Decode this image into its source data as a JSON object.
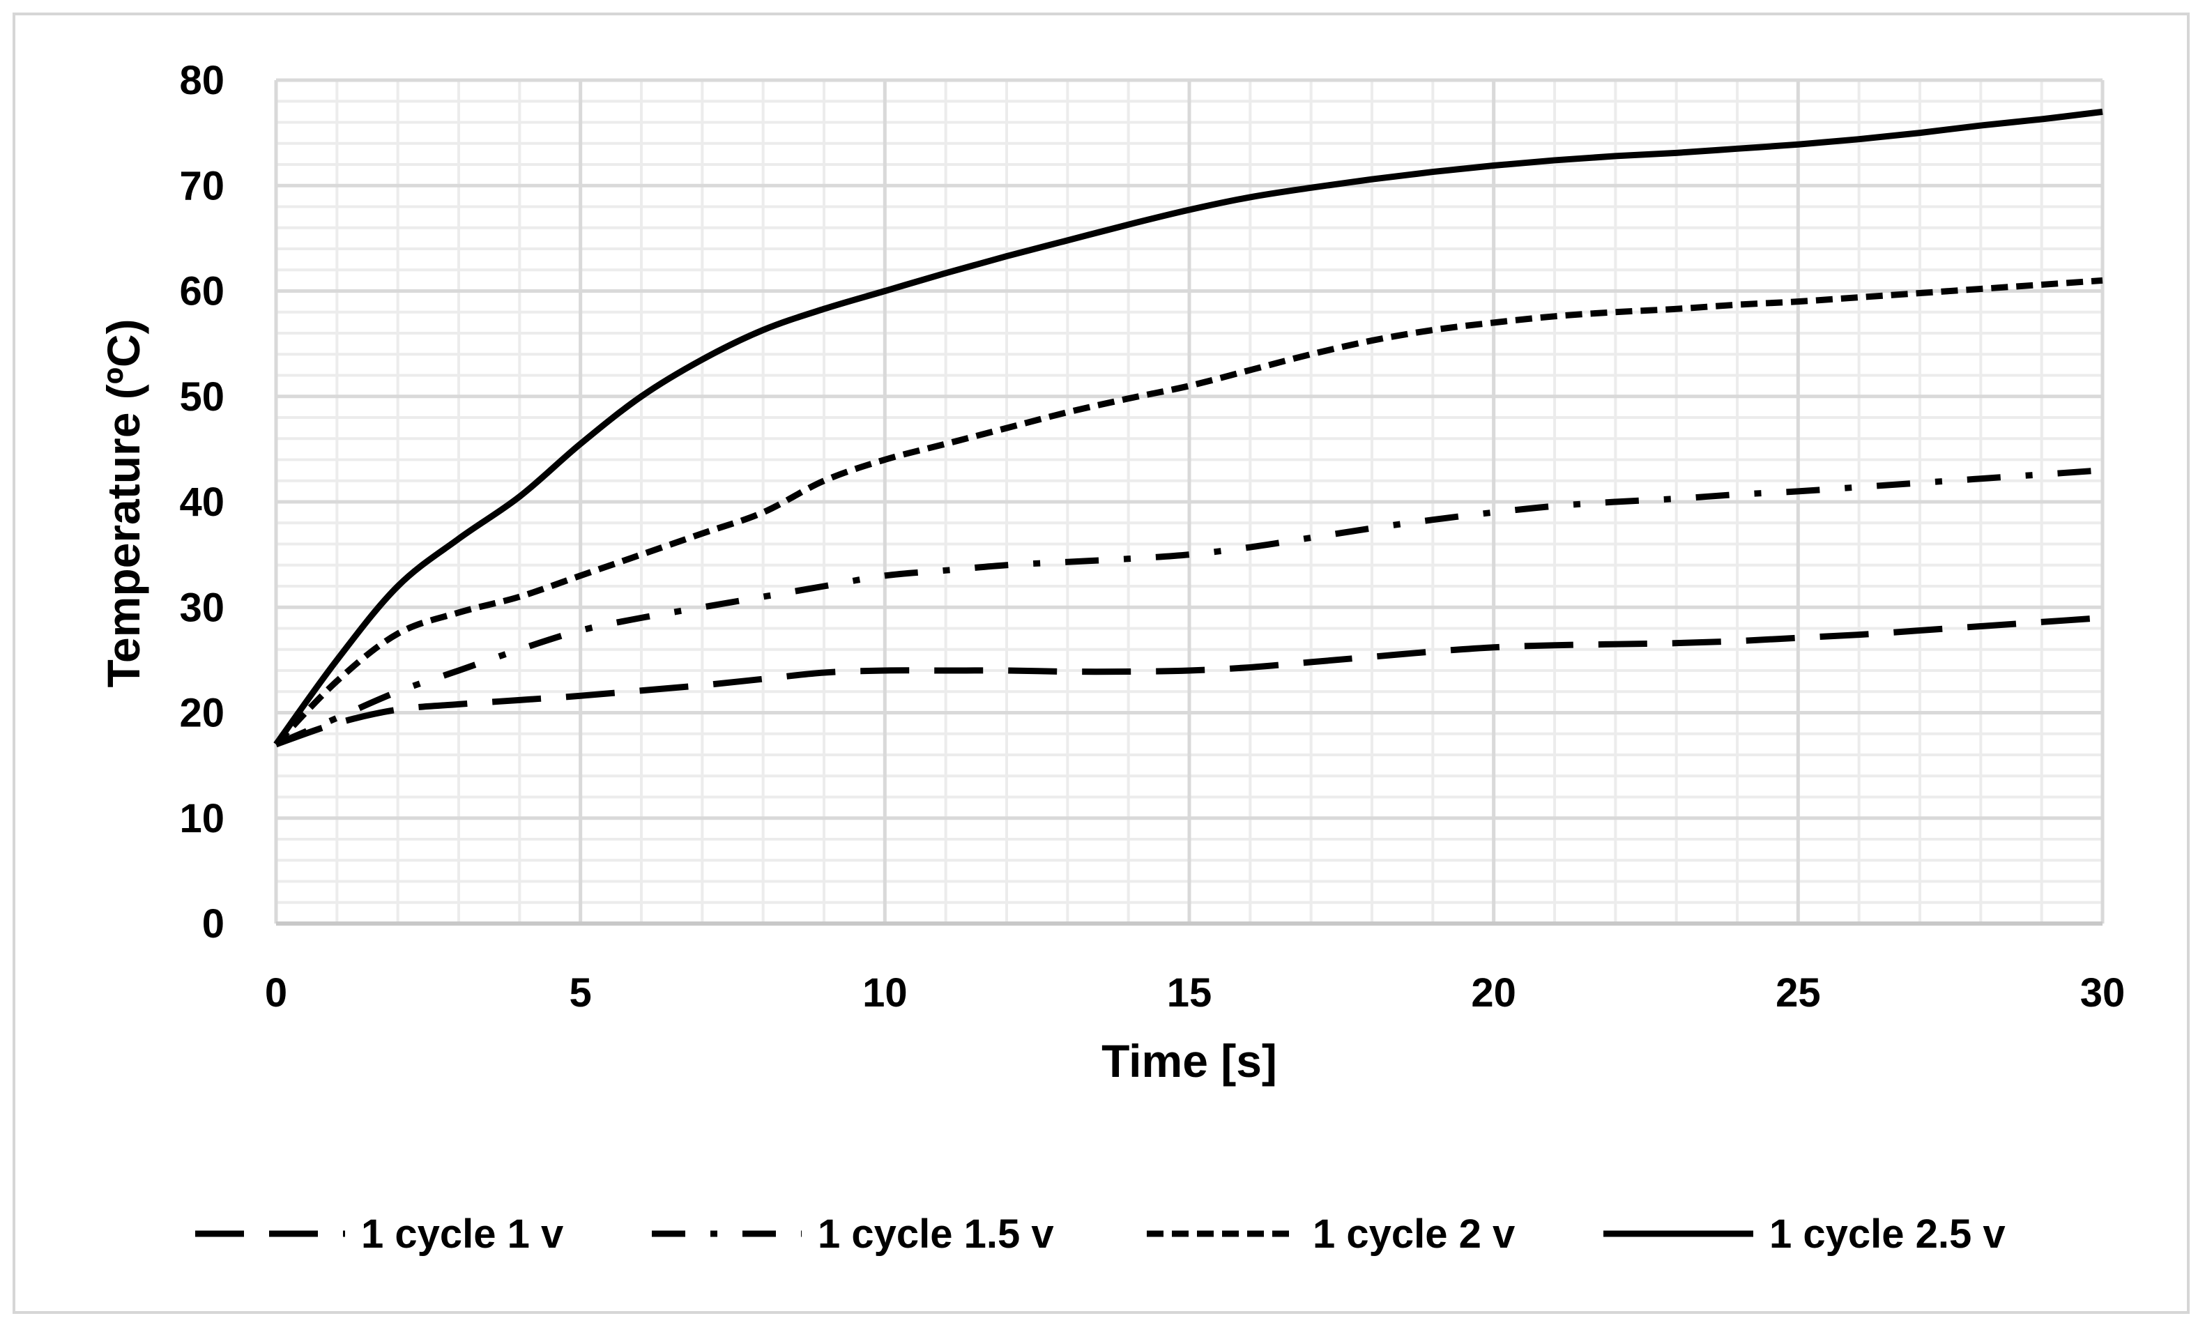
{
  "chart_data": {
    "type": "line",
    "title": "",
    "xlabel": "Time [s]",
    "ylabel": "Temperature (ºC)",
    "xlim": [
      0,
      30
    ],
    "ylim": [
      0,
      80
    ],
    "xticks": [
      0,
      5,
      10,
      15,
      20,
      25,
      30
    ],
    "yticks": [
      0,
      10,
      20,
      30,
      40,
      50,
      60,
      70,
      80
    ],
    "x_minor_step": 1,
    "y_minor_step": 2,
    "grid": true,
    "legend_position": "bottom",
    "line_color": "#000000",
    "grid_major_color": "#d9d9d9",
    "grid_minor_color": "#ececec",
    "series": [
      {
        "name": "1 cycle 1 v",
        "style": "long-dash",
        "x": [
          0,
          1,
          2,
          3,
          4,
          5,
          6,
          7,
          8,
          9,
          10,
          11,
          12,
          13,
          14,
          15,
          16,
          17,
          18,
          19,
          20,
          21,
          22,
          23,
          24,
          25,
          26,
          27,
          28,
          29,
          30
        ],
        "y": [
          17,
          19,
          20.3,
          20.8,
          21.2,
          21.6,
          22.1,
          22.6,
          23.2,
          23.8,
          24,
          24,
          24,
          23.9,
          23.9,
          24,
          24.3,
          24.8,
          25.3,
          25.8,
          26.2,
          26.4,
          26.5,
          26.6,
          26.8,
          27.1,
          27.4,
          27.8,
          28.2,
          28.6,
          29
        ]
      },
      {
        "name": "1 cycle 1.5 v",
        "style": "dash-dot",
        "x": [
          0,
          1,
          2,
          3,
          4,
          5,
          6,
          7,
          8,
          9,
          10,
          11,
          12,
          13,
          14,
          15,
          16,
          17,
          18,
          19,
          20,
          21,
          22,
          23,
          24,
          25,
          26,
          27,
          28,
          29,
          30
        ],
        "y": [
          17,
          19.5,
          22,
          24,
          26,
          27.8,
          29,
          30,
          31,
          32,
          33,
          33.5,
          34,
          34.3,
          34.6,
          35,
          35.7,
          36.6,
          37.5,
          38.3,
          39,
          39.6,
          40,
          40.3,
          40.7,
          41,
          41.4,
          41.8,
          42.2,
          42.6,
          43
        ]
      },
      {
        "name": "1 cycle 2 v",
        "style": "short-dash",
        "x": [
          0,
          1,
          2,
          3,
          4,
          5,
          6,
          7,
          8,
          9,
          10,
          11,
          12,
          13,
          14,
          15,
          16,
          17,
          18,
          19,
          20,
          21,
          22,
          23,
          24,
          25,
          26,
          27,
          28,
          29,
          30
        ],
        "y": [
          17,
          23,
          27.5,
          29.5,
          31,
          33,
          35,
          37,
          39,
          42,
          44,
          45.5,
          47,
          48.5,
          49.8,
          51,
          52.5,
          54,
          55.3,
          56.3,
          57,
          57.6,
          58,
          58.3,
          58.7,
          59,
          59.4,
          59.8,
          60.2,
          60.6,
          61
        ]
      },
      {
        "name": "1 cycle 2.5 v",
        "style": "solid",
        "x": [
          0,
          1,
          2,
          3,
          4,
          5,
          6,
          7,
          8,
          9,
          10,
          11,
          12,
          13,
          14,
          15,
          16,
          17,
          18,
          19,
          20,
          21,
          22,
          23,
          24,
          25,
          26,
          27,
          28,
          29,
          30
        ],
        "y": [
          17,
          25,
          32,
          36.5,
          40.5,
          45.5,
          50,
          53.5,
          56.3,
          58.3,
          60,
          61.7,
          63.3,
          64.8,
          66.3,
          67.7,
          68.9,
          69.8,
          70.6,
          71.3,
          71.9,
          72.4,
          72.8,
          73.1,
          73.5,
          73.9,
          74.4,
          75,
          75.7,
          76.3,
          77
        ]
      }
    ]
  }
}
